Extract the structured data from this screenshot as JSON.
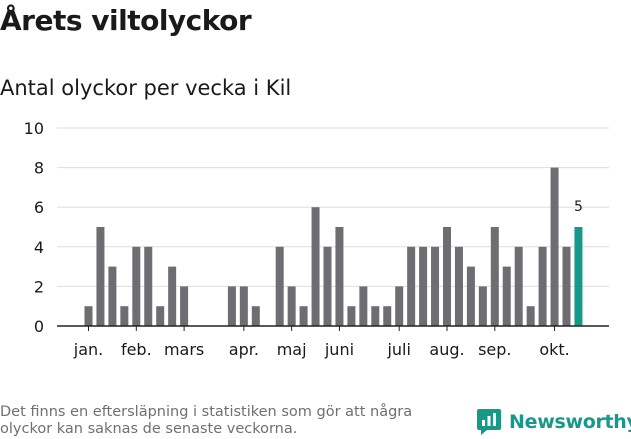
{
  "title": "Årets viltolyckor",
  "subtitle": "Antal olyckor per vecka i Kil",
  "footnote": "Det finns en eftersläpning i statistiken som gör att några olyckor kan saknas de senaste veckorna.",
  "brand": {
    "name": "Newsworthy",
    "icon": "newsworthy-logo-icon",
    "color": "#17998a"
  },
  "colors": {
    "bar": "#6e6d72",
    "highlight": "#17998a",
    "grid": "#dddddd",
    "axis": "#222222"
  },
  "chart_data": {
    "type": "bar",
    "title": "Årets viltolyckor",
    "subtitle": "Antal olyckor per vecka i Kil",
    "xlabel": "",
    "ylabel": "",
    "ylim": [
      0,
      10
    ],
    "yticks": [
      0,
      2,
      4,
      6,
      8,
      10
    ],
    "grid": true,
    "legend": "none",
    "x_tick_labels": [
      {
        "week": 1,
        "label": "jan."
      },
      {
        "week": 5,
        "label": "feb."
      },
      {
        "week": 9,
        "label": "mars"
      },
      {
        "week": 14,
        "label": "apr."
      },
      {
        "week": 18,
        "label": "maj"
      },
      {
        "week": 22,
        "label": "juni"
      },
      {
        "week": 27,
        "label": "juli"
      },
      {
        "week": 31,
        "label": "aug."
      },
      {
        "week": 35,
        "label": "sep."
      },
      {
        "week": 40,
        "label": "okt."
      }
    ],
    "weeks": [
      1,
      2,
      3,
      4,
      5,
      6,
      7,
      8,
      9,
      10,
      11,
      12,
      13,
      14,
      15,
      16,
      17,
      18,
      19,
      20,
      21,
      22,
      23,
      24,
      25,
      26,
      27,
      28,
      29,
      30,
      31,
      32,
      33,
      34,
      35,
      36,
      37,
      38,
      39,
      40,
      41,
      42
    ],
    "values": [
      1,
      5,
      3,
      1,
      4,
      4,
      1,
      3,
      2,
      0,
      0,
      0,
      2,
      2,
      1,
      0,
      4,
      2,
      1,
      6,
      4,
      5,
      1,
      2,
      1,
      1,
      2,
      4,
      4,
      4,
      5,
      4,
      3,
      2,
      5,
      3,
      4,
      1,
      4,
      8,
      4,
      5
    ],
    "highlight_index": 41,
    "highlight_label": "5"
  }
}
